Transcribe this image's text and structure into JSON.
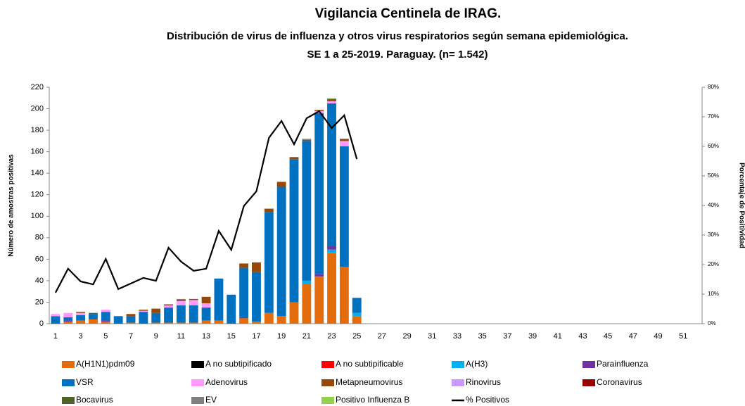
{
  "chart_data": {
    "type": "bar",
    "title": "Vigilancia Centinela de IRAG.",
    "subtitle": "Distribución de virus de influenza y otros virus respiratorios según semana epidemiológica.",
    "subtitle2": "SE 1 a 25-2019. Paraguay. (n= 1.542)",
    "y_label": "Número de amostras positivas",
    "y2_label": "Porcentaje de Positividad",
    "categories": [
      1,
      null,
      3,
      null,
      5,
      null,
      7,
      null,
      9,
      null,
      11,
      null,
      13,
      null,
      15,
      null,
      17,
      null,
      19,
      null,
      21,
      null,
      23,
      null,
      25,
      null,
      27,
      null,
      29,
      null,
      31,
      null,
      33,
      null,
      35,
      null,
      37,
      null,
      39,
      null,
      41,
      null,
      43,
      null,
      45,
      null,
      47,
      null,
      49,
      null,
      51,
      null
    ],
    "ylim": [
      0,
      220
    ],
    "yticks": [
      0,
      20,
      40,
      60,
      80,
      100,
      120,
      140,
      160,
      180,
      200,
      220
    ],
    "y2lim": [
      0,
      80
    ],
    "y2ticks": [
      {
        "value": 0,
        "label": "0%"
      },
      {
        "value": 10,
        "label": "10%"
      },
      {
        "value": 20,
        "label": "20%"
      },
      {
        "value": 30,
        "label": "30%"
      },
      {
        "value": 40,
        "label": "40%"
      },
      {
        "value": 50,
        "label": "50%"
      },
      {
        "value": 60,
        "label": "60%"
      },
      {
        "value": 70,
        "label": "70%"
      },
      {
        "value": 80,
        "label": "80%"
      }
    ],
    "series": [
      {
        "name": "A(H1N1)pdm09",
        "color": "#e46c0a",
        "values": [
          0,
          2,
          3,
          4,
          2,
          0,
          1,
          0,
          1,
          1,
          1,
          1,
          3,
          3,
          0,
          5,
          2,
          10,
          7,
          20,
          37,
          44,
          66,
          53,
          7,
          null,
          null,
          null,
          null,
          null,
          null,
          null,
          null,
          null,
          null,
          null,
          null,
          null,
          null,
          null,
          null,
          null,
          null,
          null,
          null,
          null,
          null,
          null,
          null,
          null,
          null,
          null
        ]
      },
      {
        "name": "A no subtipificado",
        "color": "#000000",
        "values": [
          0,
          0,
          0,
          0,
          0,
          0,
          0,
          0,
          0,
          0,
          0,
          0,
          0,
          0,
          0,
          0,
          0,
          0,
          0,
          0,
          0,
          0,
          0,
          0,
          0,
          null,
          null,
          null,
          null,
          null,
          null,
          null,
          null,
          null,
          null,
          null,
          null,
          null,
          null,
          null,
          null,
          null,
          null,
          null,
          null,
          null,
          null,
          null,
          null,
          null,
          null,
          null
        ]
      },
      {
        "name": "A no subtipificable",
        "color": "#ff0000",
        "values": [
          0,
          0,
          0,
          0,
          0,
          0,
          0,
          0,
          0,
          0,
          0,
          0,
          0,
          0,
          0,
          0,
          0,
          0,
          0,
          0,
          0,
          0,
          0,
          0,
          0,
          null,
          null,
          null,
          null,
          null,
          null,
          null,
          null,
          null,
          null,
          null,
          null,
          null,
          null,
          null,
          null,
          null,
          null,
          null,
          null,
          null,
          null,
          null,
          null,
          null,
          null,
          null
        ]
      },
      {
        "name": "A(H3)",
        "color": "#00b0f0",
        "values": [
          0,
          0,
          0,
          0,
          0,
          0,
          0,
          0,
          0,
          0,
          0,
          0,
          0,
          0,
          0,
          0,
          0,
          0,
          0,
          0,
          3,
          0,
          3,
          0,
          3,
          null,
          null,
          null,
          null,
          null,
          null,
          null,
          null,
          null,
          null,
          null,
          null,
          null,
          null,
          null,
          null,
          null,
          null,
          null,
          null,
          null,
          null,
          null,
          null,
          null,
          null,
          null
        ]
      },
      {
        "name": "Parainfluenza",
        "color": "#7030a0",
        "values": [
          0,
          1,
          0,
          0,
          1,
          0,
          0,
          0,
          0,
          0,
          0,
          0,
          0,
          0,
          0,
          1,
          0,
          0,
          0,
          0,
          0,
          2,
          3,
          0,
          0,
          null,
          null,
          null,
          null,
          null,
          null,
          null,
          null,
          null,
          null,
          null,
          null,
          null,
          null,
          null,
          null,
          null,
          null,
          null,
          null,
          null,
          null,
          null,
          null,
          null,
          null,
          null
        ]
      },
      {
        "name": "VSR",
        "color": "#0070c0",
        "values": [
          7,
          3,
          5,
          5,
          8,
          7,
          6,
          11,
          9,
          14,
          16,
          16,
          12,
          39,
          27,
          46,
          46,
          94,
          120,
          133,
          130,
          150,
          133,
          112,
          14,
          null,
          null,
          null,
          null,
          null,
          null,
          null,
          null,
          null,
          null,
          null,
          null,
          null,
          null,
          null,
          null,
          null,
          null,
          null,
          null,
          null,
          null,
          null,
          null,
          null,
          null,
          null
        ]
      },
      {
        "name": "Adenovirus",
        "color": "#ff99ff",
        "values": [
          2,
          4,
          2,
          0,
          2,
          0,
          0,
          1,
          0,
          2,
          4,
          5,
          4,
          0,
          0,
          0,
          0,
          0,
          0,
          0,
          0,
          2,
          2,
          5,
          0,
          null,
          null,
          null,
          null,
          null,
          null,
          null,
          null,
          null,
          null,
          null,
          null,
          null,
          null,
          null,
          null,
          null,
          null,
          null,
          null,
          null,
          null,
          null,
          null,
          null,
          null,
          null
        ]
      },
      {
        "name": "Metapneumovirus",
        "color": "#974706",
        "values": [
          0,
          0,
          1,
          0,
          0,
          0,
          2,
          1,
          4,
          1,
          1,
          1,
          6,
          0,
          0,
          4,
          9,
          3,
          5,
          2,
          1,
          1,
          2,
          2,
          0,
          null,
          null,
          null,
          null,
          null,
          null,
          null,
          null,
          null,
          null,
          null,
          null,
          null,
          null,
          null,
          null,
          null,
          null,
          null,
          null,
          null,
          null,
          null,
          null,
          null,
          null,
          null
        ]
      },
      {
        "name": "Rinovirus",
        "color": "#cc99ff",
        "values": [
          0,
          0,
          0,
          0,
          0,
          0,
          0,
          0,
          0,
          0,
          0,
          0,
          0,
          0,
          0,
          0,
          0,
          0,
          0,
          0,
          0,
          0,
          0,
          0,
          0,
          null,
          null,
          null,
          null,
          null,
          null,
          null,
          null,
          null,
          null,
          null,
          null,
          null,
          null,
          null,
          null,
          null,
          null,
          null,
          null,
          null,
          null,
          null,
          null,
          null,
          null,
          null
        ]
      },
      {
        "name": "Coronavirus",
        "color": "#990000",
        "values": [
          0,
          0,
          0,
          0,
          0,
          0,
          0,
          0,
          0,
          0,
          0,
          0,
          0,
          0,
          0,
          0,
          0,
          0,
          0,
          0,
          0,
          0,
          0,
          0,
          0,
          null,
          null,
          null,
          null,
          null,
          null,
          null,
          null,
          null,
          null,
          null,
          null,
          null,
          null,
          null,
          null,
          null,
          null,
          null,
          null,
          null,
          null,
          null,
          null,
          null,
          null,
          null
        ]
      },
      {
        "name": "Bocavirus",
        "color": "#4f6228",
        "values": [
          0,
          0,
          0,
          1,
          0,
          0,
          0,
          0,
          0,
          0,
          0,
          0,
          0,
          0,
          0,
          0,
          0,
          0,
          0,
          0,
          0,
          0,
          0,
          0,
          0,
          null,
          null,
          null,
          null,
          null,
          null,
          null,
          null,
          null,
          null,
          null,
          null,
          null,
          null,
          null,
          null,
          null,
          null,
          null,
          null,
          null,
          null,
          null,
          null,
          null,
          null,
          null
        ]
      },
      {
        "name": "EV",
        "color": "#808080",
        "values": [
          0,
          0,
          0,
          0,
          0,
          0,
          0,
          0,
          0,
          0,
          1,
          0,
          0,
          0,
          0,
          0,
          0,
          0,
          0,
          0,
          1,
          0,
          0,
          0,
          0,
          null,
          null,
          null,
          null,
          null,
          null,
          null,
          null,
          null,
          null,
          null,
          null,
          null,
          null,
          null,
          null,
          null,
          null,
          null,
          null,
          null,
          null,
          null,
          null,
          null,
          null,
          null
        ]
      },
      {
        "name": "Positivo Influenza  B",
        "color": "#92d050",
        "values": [
          0,
          0,
          0,
          0,
          0,
          0,
          0,
          0,
          0,
          0,
          0,
          0,
          0,
          0,
          0,
          0,
          0,
          0,
          0,
          0,
          0,
          0,
          1,
          0,
          0,
          null,
          null,
          null,
          null,
          null,
          null,
          null,
          null,
          null,
          null,
          null,
          null,
          null,
          null,
          null,
          null,
          null,
          null,
          null,
          null,
          null,
          null,
          null,
          null,
          null,
          null,
          null
        ]
      },
      {
        "name": "% Positivos",
        "color": "#000000",
        "type": "line",
        "axis": "y2",
        "values": [
          10.5,
          18.6,
          14.3,
          13.3,
          21.9,
          11.7,
          13.6,
          15.5,
          14.5,
          25.7,
          21,
          17.9,
          18.6,
          31.4,
          25,
          39.8,
          44.8,
          62.9,
          68.6,
          60.7,
          69.5,
          71.9,
          66.2,
          70.5,
          55.7,
          null,
          null,
          null,
          null,
          null,
          null,
          null,
          null,
          null,
          null,
          null,
          null,
          null,
          null,
          null,
          null,
          null,
          null,
          null,
          null,
          null,
          null,
          null,
          null,
          null,
          null,
          null
        ]
      }
    ]
  }
}
